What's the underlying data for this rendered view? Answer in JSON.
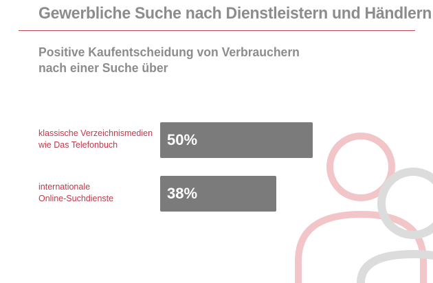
{
  "header": {
    "title": "Gewerbliche Suche nach Dienstleistern und Händlern",
    "subtitle_line1": "Positive Kaufentscheidung von Verbrauchern",
    "subtitle_line2": "nach einer Suche über"
  },
  "colors": {
    "accent": "#c0434e",
    "bar": "#7b7b7b",
    "heading": "#8c8c8c",
    "deco_red": "#f2c6c9",
    "deco_grey": "#dcdcdc"
  },
  "chart_data": {
    "type": "bar",
    "orientation": "horizontal",
    "categories": [
      [
        "klassische Verzeichnismedien",
        "wie Das Telefonbuch"
      ],
      [
        "internationale",
        "Online-Suchdienste"
      ]
    ],
    "values": [
      50,
      38
    ],
    "value_labels": [
      "50%",
      "38%"
    ],
    "unit": "%",
    "xlim": [
      0,
      100
    ],
    "grid": false
  }
}
